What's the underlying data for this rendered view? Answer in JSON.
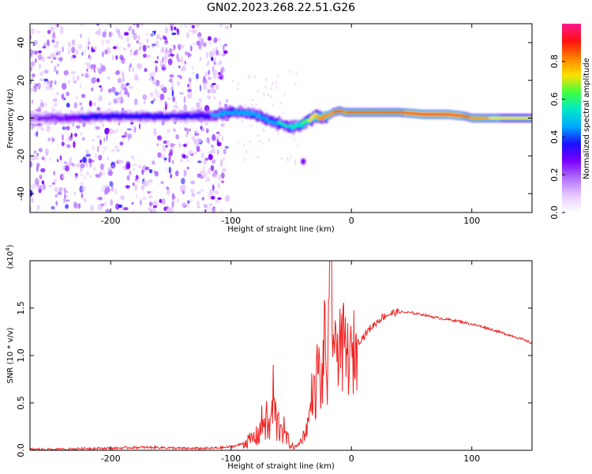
{
  "figure_title": "GN02.2023.268.22.51.G26",
  "colors": {
    "snr_line": "#ee2222",
    "colormap": [
      "#ffffff",
      "#e6c8ff",
      "#b070ff",
      "#7a00ff",
      "#1a10ff",
      "#00a8ff",
      "#00e8c8",
      "#40ff40",
      "#ffe000",
      "#ff8000",
      "#ff1010",
      "#ff1a8c"
    ]
  },
  "chart_data": [
    {
      "type": "heatmap",
      "id": "spectrogram",
      "title": "",
      "xlabel": "Height of straight line (km)",
      "ylabel": "Frequency (Hz)",
      "xlim": [
        -267,
        150
      ],
      "ylim": [
        -50,
        50
      ],
      "x_ticks": [
        -200,
        -100,
        0,
        100
      ],
      "x_tick_labels": [
        "-200",
        "-100",
        "0",
        "100"
      ],
      "y_ticks": [
        -40,
        -20,
        0,
        20,
        40
      ],
      "y_tick_labels": [
        "-40",
        "-20",
        "0",
        "20",
        "40"
      ],
      "scatter_noise_region_km": [
        -267,
        -103
      ],
      "main_trace": {
        "description": "frequency ridge of the signal",
        "x": [
          -267,
          -240,
          -200,
          -160,
          -120,
          -100,
          -90,
          -80,
          -70,
          -60,
          -50,
          -40,
          -30,
          -25,
          -20,
          -15,
          -10,
          -5,
          0,
          20,
          40,
          60,
          80,
          95,
          100,
          110,
          120,
          150
        ],
        "freq": [
          0,
          0,
          1,
          1,
          1,
          3,
          3,
          2,
          -1,
          -3,
          -5,
          -3,
          1,
          0,
          1,
          3,
          4,
          3,
          3,
          3,
          3,
          2,
          2,
          1,
          0,
          0,
          0,
          0
        ],
        "amplitude": [
          0.2,
          0.3,
          0.35,
          0.35,
          0.4,
          0.45,
          0.45,
          0.45,
          0.45,
          0.5,
          0.55,
          0.6,
          0.75,
          0.85,
          0.8,
          0.85,
          0.9,
          0.85,
          0.9,
          0.9,
          0.9,
          0.95,
          0.95,
          0.9,
          0.85,
          0.8,
          0.75,
          0.7
        ]
      },
      "colorbar": {
        "label": "Normalized spectral amplitude",
        "range": [
          0.0,
          1.0
        ],
        "ticks": [
          0.0,
          0.2,
          0.4,
          0.6,
          0.8
        ],
        "tick_labels": [
          "0.0",
          "0.2",
          "0.4",
          "0.6",
          "0.8"
        ]
      }
    },
    {
      "type": "line",
      "id": "snr",
      "title": "",
      "xlabel": "Height of straight line (km)",
      "ylabel": "SNR (10 * v/v)",
      "y_scale_label": "(x10",
      "y_scale_exponent": "4",
      "y_scale_suffix": ")",
      "xlim": [
        -267,
        150
      ],
      "ylim": [
        0.0,
        2.0
      ],
      "x_ticks": [
        -200,
        -100,
        0,
        100
      ],
      "x_tick_labels": [
        "-200",
        "-100",
        "0",
        "100"
      ],
      "y_ticks": [
        0.0,
        0.5,
        1.0,
        1.5
      ],
      "y_tick_labels": [
        "0.0",
        "0.5",
        "1.0",
        "1.5"
      ],
      "series": [
        {
          "name": "SNR",
          "x": [
            -267,
            -240,
            -220,
            -200,
            -180,
            -160,
            -140,
            -120,
            -105,
            -95,
            -85,
            -78,
            -72,
            -68,
            -65,
            -62,
            -58,
            -55,
            -50,
            -46,
            -42,
            -38,
            -35,
            -32,
            -30,
            -28,
            -25,
            -22,
            -20,
            -18,
            -17,
            -15,
            -13,
            -10,
            -8,
            -6,
            -4,
            -2,
            0,
            3,
            6,
            10,
            15,
            20,
            25,
            30,
            35,
            40,
            50,
            60,
            70,
            80,
            90,
            100,
            110,
            120,
            130,
            140,
            150
          ],
          "y": [
            0.01,
            0.01,
            0.02,
            0.02,
            0.03,
            0.03,
            0.02,
            0.02,
            0.03,
            0.05,
            0.1,
            0.15,
            0.35,
            0.2,
            0.55,
            0.25,
            0.3,
            0.15,
            0.05,
            0.03,
            0.1,
            0.2,
            0.35,
            0.7,
            0.5,
            0.95,
            0.6,
            1.2,
            0.7,
            1.55,
            1.95,
            1.25,
            0.9,
            1.35,
            1.0,
            1.1,
            0.95,
            1.05,
            0.9,
            1.1,
            1.15,
            1.2,
            1.28,
            1.34,
            1.4,
            1.43,
            1.45,
            1.46,
            1.45,
            1.43,
            1.4,
            1.38,
            1.36,
            1.33,
            1.3,
            1.26,
            1.22,
            1.18,
            1.13
          ]
        }
      ]
    }
  ]
}
